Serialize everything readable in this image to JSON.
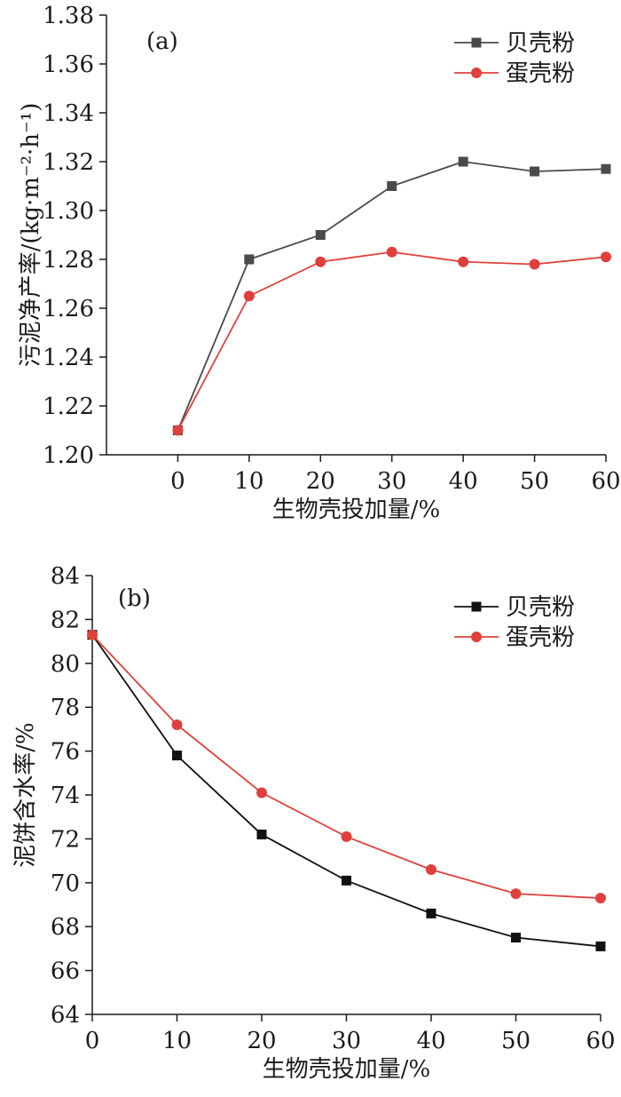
{
  "chart_data": [
    {
      "type": "line",
      "panel_label": "(a)",
      "xlabel": "生物壳投加量/%",
      "ylabel": "污泥净产率/(kg·m⁻²·h⁻¹)",
      "x": [
        0,
        10,
        20,
        30,
        40,
        50,
        60
      ],
      "xlim": [
        -10,
        60
      ],
      "ylim": [
        1.2,
        1.38
      ],
      "x_ticks": [
        "0",
        "10",
        "20",
        "30",
        "40",
        "50",
        "60"
      ],
      "y_ticks": [
        "1.20",
        "1.22",
        "1.24",
        "1.26",
        "1.28",
        "1.30",
        "1.32",
        "1.34",
        "1.36",
        "1.38"
      ],
      "grid": false,
      "legend_position": "top-right",
      "series": [
        {
          "name": "贝壳粉",
          "marker": "square",
          "color": "#4a4a4a",
          "values": [
            1.21,
            1.28,
            1.29,
            1.31,
            1.32,
            1.316,
            1.317
          ]
        },
        {
          "name": "蛋壳粉",
          "marker": "circle",
          "color": "#e0403c",
          "values": [
            1.21,
            1.265,
            1.279,
            1.283,
            1.279,
            1.278,
            1.281
          ]
        }
      ]
    },
    {
      "type": "line",
      "panel_label": "(b)",
      "xlabel": "生物壳投加量/%",
      "ylabel": "泥饼含水率/%",
      "x": [
        0,
        10,
        20,
        30,
        40,
        50,
        60
      ],
      "xlim": [
        0,
        60
      ],
      "ylim": [
        64,
        84
      ],
      "x_ticks": [
        "0",
        "10",
        "20",
        "30",
        "40",
        "50",
        "60"
      ],
      "y_ticks": [
        "64",
        "66",
        "68",
        "70",
        "72",
        "74",
        "76",
        "78",
        "80",
        "82",
        "84"
      ],
      "grid": false,
      "legend_position": "top-right",
      "series": [
        {
          "name": "贝壳粉",
          "marker": "square",
          "color": "#111111",
          "values": [
            81.3,
            75.8,
            72.2,
            70.1,
            68.6,
            67.5,
            67.1
          ]
        },
        {
          "name": "蛋壳粉",
          "marker": "circle",
          "color": "#e0403c",
          "values": [
            81.3,
            77.2,
            74.1,
            72.1,
            70.6,
            69.5,
            69.3
          ]
        }
      ]
    }
  ]
}
